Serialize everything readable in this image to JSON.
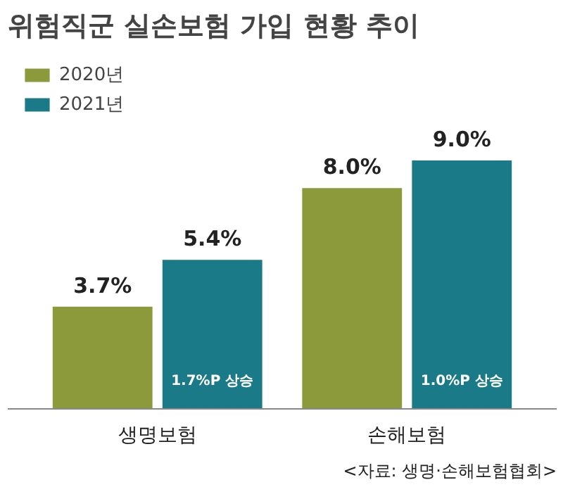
{
  "chart_data": {
    "type": "bar",
    "title": "위험직군 실손보험 가입 현황 추이",
    "categories": [
      "생명보험",
      "손해보험"
    ],
    "series": [
      {
        "name": "2020년",
        "color": "#8c9a3c",
        "values": [
          3.7,
          8.0
        ],
        "value_labels": [
          "3.7%",
          "8.0%"
        ]
      },
      {
        "name": "2021년",
        "color": "#1b7a88",
        "values": [
          5.4,
          9.0
        ],
        "value_labels": [
          "5.4%",
          "9.0%"
        ]
      }
    ],
    "legend": "top left",
    "grid": false,
    "annotations": [
      {
        "text": "1.7%P 상승",
        "x": "생명보험"
      },
      {
        "text": "1.0%P 상승",
        "x": "손해보험"
      },
      "<자료: 생명·손해보험협회>"
    ]
  }
}
